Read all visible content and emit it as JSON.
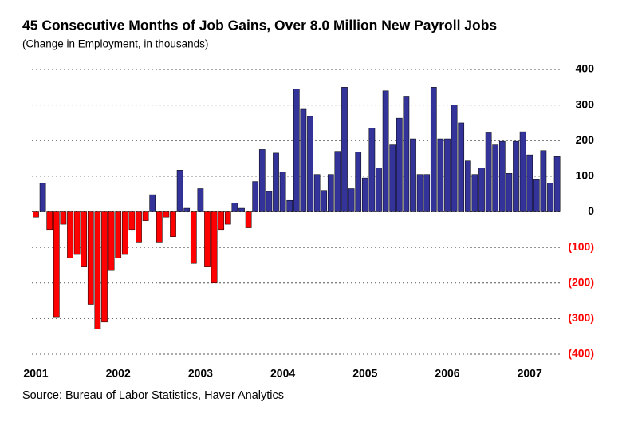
{
  "chart_data": {
    "type": "bar",
    "title": "45 Consecutive Months of Job Gains, Over 8.0 Million New Payroll Jobs",
    "subtitle": "(Change in Employment, in thousands)",
    "source": "Source: Bureau of Labor Statistics, Haver Analytics",
    "categories": [
      "2001",
      null,
      null,
      null,
      null,
      null,
      null,
      null,
      null,
      null,
      null,
      null,
      "2002",
      null,
      null,
      null,
      null,
      null,
      null,
      null,
      null,
      null,
      null,
      null,
      "2003",
      null,
      null,
      null,
      null,
      null,
      null,
      null,
      null,
      null,
      null,
      null,
      "2004",
      null,
      null,
      null,
      null,
      null,
      null,
      null,
      null,
      null,
      null,
      null,
      "2005",
      null,
      null,
      null,
      null,
      null,
      null,
      null,
      null,
      null,
      null,
      null,
      "2006",
      null,
      null,
      null,
      null,
      null,
      null,
      null,
      null,
      null,
      null,
      null,
      "2007",
      null,
      null,
      null,
      null
    ],
    "values": [
      -15,
      80,
      -50,
      -295,
      -35,
      -130,
      -120,
      -155,
      -260,
      -330,
      -310,
      -165,
      -130,
      -120,
      -50,
      -85,
      -25,
      48,
      -85,
      -15,
      -70,
      117,
      10,
      -145,
      65,
      -155,
      -200,
      -50,
      -35,
      25,
      10,
      -45,
      85,
      175,
      57,
      165,
      112,
      32,
      345,
      288,
      268,
      105,
      60,
      105,
      170,
      350,
      65,
      168,
      95,
      235,
      123,
      340,
      188,
      263,
      325,
      205,
      105,
      105,
      350,
      205,
      205,
      300,
      250,
      143,
      105,
      123,
      222,
      188,
      198,
      108,
      198,
      225,
      160,
      90,
      172,
      80,
      155
    ],
    "positive_color": "#333399",
    "negative_color": "#ff0000",
    "ylim": [
      -400,
      400
    ],
    "yticks": [
      {
        "value": -400,
        "label": "(400)"
      },
      {
        "value": -300,
        "label": "(300)"
      },
      {
        "value": -200,
        "label": "(200)"
      },
      {
        "value": -100,
        "label": "(100)"
      },
      0,
      100,
      200,
      300,
      400
    ],
    "grid": true
  }
}
